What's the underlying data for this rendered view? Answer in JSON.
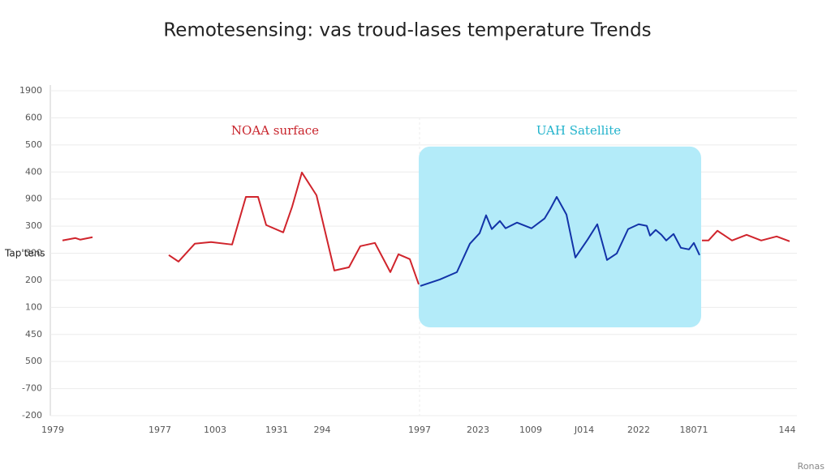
{
  "chart_data": {
    "type": "line",
    "title": "Remotesensing: vas troud-lases temperature Trends",
    "ylabel": "Tap'tens",
    "footer": "Ronas",
    "xlim": [
      0,
      920
    ],
    "ylim": [
      0,
      12
    ],
    "grid": true,
    "xticks": [
      {
        "value": 3,
        "label": "1979"
      },
      {
        "value": 135,
        "label": "1977"
      },
      {
        "value": 203,
        "label": "1003"
      },
      {
        "value": 279,
        "label": "1931"
      },
      {
        "value": 335,
        "label": "294"
      },
      {
        "value": 455,
        "label": "1997"
      },
      {
        "value": 527,
        "label": "2023"
      },
      {
        "value": 592,
        "label": "1009"
      },
      {
        "value": 658,
        "label": "J014"
      },
      {
        "value": 725,
        "label": "2022"
      },
      {
        "value": 793,
        "label": "18071"
      },
      {
        "value": 908,
        "label": "144"
      }
    ],
    "yticks": [
      {
        "value": 0,
        "label": "-200"
      },
      {
        "value": 1,
        "label": "-700"
      },
      {
        "value": 2,
        "label": "500"
      },
      {
        "value": 3,
        "label": "450"
      },
      {
        "value": 4,
        "label": "100"
      },
      {
        "value": 5,
        "label": "200"
      },
      {
        "value": 6,
        "label": "300"
      },
      {
        "value": 7,
        "label": "300"
      },
      {
        "value": 8,
        "label": "900"
      },
      {
        "value": 9,
        "label": "400"
      },
      {
        "value": 10,
        "label": "500"
      },
      {
        "value": 11,
        "label": "600"
      },
      {
        "value": 12,
        "label": "1900"
      }
    ],
    "highlight": {
      "xlim": [
        454,
        802
      ],
      "ylim": [
        3.26,
        9.94
      ],
      "color": "#b3ebf9"
    },
    "series": [
      {
        "name": "NOAA surface",
        "color": "#d0242c",
        "label_color": "#c8242c",
        "x": [
          15,
          31,
          37,
          52,
          null,
          146,
          158,
          178,
          198,
          224,
          241,
          256,
          266,
          287,
          298,
          310,
          328,
          350,
          368,
          382,
          400,
          419,
          429,
          443,
          454,
          null,
          803,
          811,
          822,
          840,
          858,
          876,
          895,
          911
        ],
        "values": [
          6.47,
          6.56,
          6.5,
          6.59,
          null,
          5.93,
          5.69,
          6.35,
          6.41,
          6.32,
          8.08,
          8.08,
          7.04,
          6.77,
          7.72,
          8.98,
          8.14,
          5.36,
          5.48,
          6.26,
          6.38,
          5.3,
          5.96,
          5.78,
          4.85,
          null,
          6.47,
          6.47,
          6.83,
          6.47,
          6.68,
          6.47,
          6.62,
          6.44
        ],
        "label_at": [
          277,
          10.5
        ]
      },
      {
        "name": "UAH Satellite",
        "color": "#1233a8",
        "label_color": "#22b3cc",
        "x": [
          456,
          480,
          501,
          517,
          529,
          537,
          544,
          554,
          561,
          575,
          593,
          609,
          616,
          624,
          636,
          647,
          662,
          674,
          686,
          698,
          712,
          725,
          735,
          739,
          746,
          753,
          759,
          768,
          777,
          787,
          793,
          800
        ],
        "values": [
          4.79,
          5.03,
          5.3,
          6.35,
          6.74,
          7.4,
          6.89,
          7.19,
          6.92,
          7.13,
          6.92,
          7.28,
          7.63,
          8.08,
          7.43,
          5.84,
          6.5,
          7.07,
          5.75,
          5.99,
          6.89,
          7.07,
          7.01,
          6.65,
          6.86,
          6.68,
          6.47,
          6.71,
          6.2,
          6.14,
          6.38,
          5.93
        ],
        "label_at": [
          651,
          10.5
        ]
      }
    ]
  }
}
